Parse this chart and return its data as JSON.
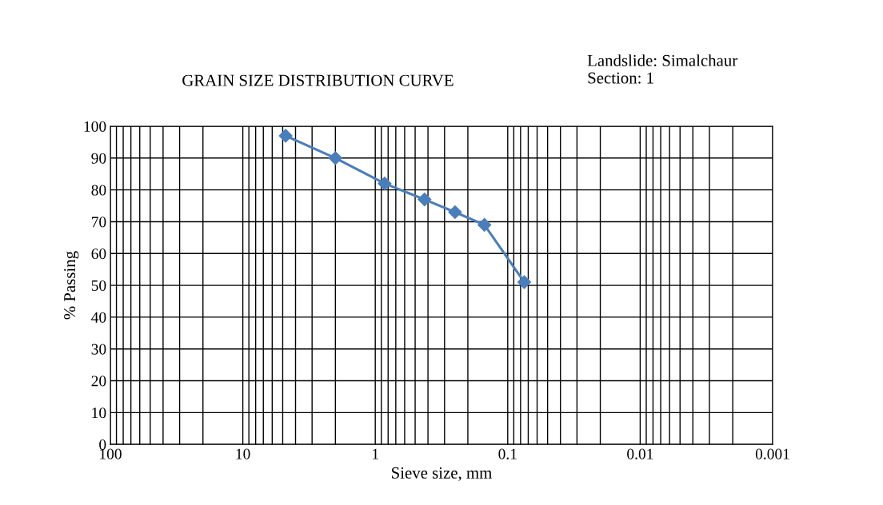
{
  "chart_data": {
    "type": "line",
    "title": "GRAIN SIZE DISTRIBUTION CURVE",
    "annotations": [
      "Landslide: Simalchaur\nSection: 1"
    ],
    "xlabel": "Sieve size, mm",
    "ylabel": "% Passing",
    "x": [
      4.75,
      2,
      0.85,
      0.425,
      0.25,
      0.15,
      0.075
    ],
    "series": [
      {
        "color": "#4a7ebb",
        "values": [
          97,
          90,
          82,
          77,
          73,
          69,
          51
        ]
      }
    ],
    "log": "x",
    "xlim": [
      100,
      0.001
    ],
    "xticks": [
      100,
      10,
      1,
      0.1,
      0.01,
      0.001
    ],
    "ylim": [
      0,
      100
    ],
    "yticks": [
      0,
      10,
      20,
      30,
      40,
      50,
      60,
      70,
      80,
      90,
      100
    ],
    "grid": true,
    "marker": "diamond",
    "line_style": "solid"
  }
}
